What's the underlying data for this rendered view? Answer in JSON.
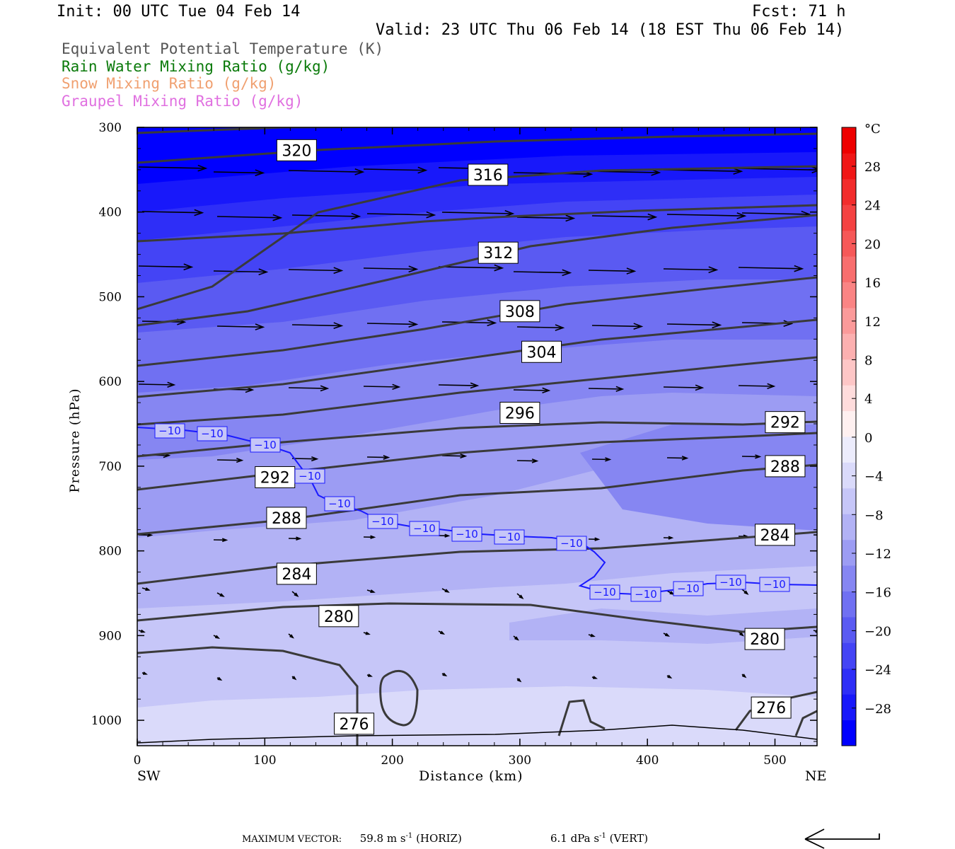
{
  "header": {
    "init": "Init: 00 UTC Tue 04 Feb 14",
    "fcst": "Fcst:   71 h",
    "valid": "Valid: 23 UTC Thu 06 Feb 14 (18 EST Thu 06 Feb 14)"
  },
  "titles": [
    {
      "text": "Equivalent Potential Temperature (K)",
      "color": "#555555"
    },
    {
      "text": "Rain Water Mixing Ratio (g/kg)",
      "color": "#0a7a0a"
    },
    {
      "text": "Snow Mixing Ratio (g/kg)",
      "color": "#f0a070"
    },
    {
      "text": "Graupel Mixing Ratio (g/kg)",
      "color": "#e070e0"
    }
  ],
  "axes": {
    "ylabel": "Pressure (hPa)",
    "xlabel": "Distance (km)",
    "x_start_label": "SW",
    "x_end_label": "NE"
  },
  "footer": {
    "max_vector_label": "MAXIMUM VECTOR:",
    "horiz": "59.8 m s",
    "horiz_unit": "(HORIZ)",
    "vert": "6.1 dPa s",
    "vert_unit": "(VERT)",
    "exponent": "-1"
  },
  "colorbar": {
    "unit": "°C",
    "ticks": [
      "28",
      "24",
      "20",
      "16",
      "12",
      "8",
      "4",
      "0",
      "−4",
      "−8",
      "−12",
      "−16",
      "−20",
      "−24",
      "−28"
    ],
    "colors": [
      "#0000ff",
      "#1818fa",
      "#2e2ef7",
      "#4444f5",
      "#5a5af2",
      "#7070f2",
      "#8686f2",
      "#9c9cf3",
      "#b2b2f5",
      "#c6c6f8",
      "#dadafa",
      "#ececfc",
      "#fef0f0",
      "#fedcdc",
      "#fdc6c6",
      "#fcb0b0",
      "#fb9a9a",
      "#fa8484",
      "#f86e6e",
      "#f65858",
      "#f44242",
      "#f22c2c",
      "#f01616",
      "#ee0000"
    ]
  },
  "chart_data": {
    "type": "cross-section",
    "x": {
      "label": "Distance (km)",
      "range": [
        0,
        533
      ],
      "ticks": [
        0,
        100,
        200,
        300,
        400,
        500
      ]
    },
    "y": {
      "label": "Pressure (hPa)",
      "range": [
        1030,
        300
      ],
      "ticks": [
        300,
        400,
        500,
        600,
        700,
        800,
        900,
        1000
      ]
    },
    "filled": {
      "name": "temperature",
      "unit": "°C",
      "range": [
        -30,
        30
      ]
    },
    "theta_e_contours": [
      {
        "level": 320,
        "labels": [
          {
            "x": 125,
            "p": 327
          }
        ]
      },
      {
        "level": 316,
        "labels": [
          {
            "x": 275,
            "p": 356
          }
        ]
      },
      {
        "level": 312,
        "labels": [
          {
            "x": 283,
            "p": 448
          }
        ]
      },
      {
        "level": 308,
        "labels": [
          {
            "x": 300,
            "p": 517
          }
        ]
      },
      {
        "level": 304,
        "labels": [
          {
            "x": 317,
            "p": 565
          }
        ]
      },
      {
        "level": 296,
        "labels": [
          {
            "x": 300,
            "p": 637
          }
        ]
      },
      {
        "level": 292,
        "labels": [
          {
            "x": 108,
            "p": 713
          },
          {
            "x": 508,
            "p": 648
          }
        ]
      },
      {
        "level": 288,
        "labels": [
          {
            "x": 117,
            "p": 761
          },
          {
            "x": 508,
            "p": 700
          }
        ]
      },
      {
        "level": 284,
        "labels": [
          {
            "x": 125,
            "p": 827
          },
          {
            "x": 500,
            "p": 781
          }
        ]
      },
      {
        "level": 280,
        "labels": [
          {
            "x": 158,
            "p": 877
          },
          {
            "x": 492,
            "p": 904
          }
        ]
      },
      {
        "level": 276,
        "labels": [
          {
            "x": 170,
            "p": 1004
          },
          {
            "x": 497,
            "p": 985
          }
        ]
      }
    ],
    "temperature_contour": {
      "level": -10,
      "label_count": 15
    }
  }
}
